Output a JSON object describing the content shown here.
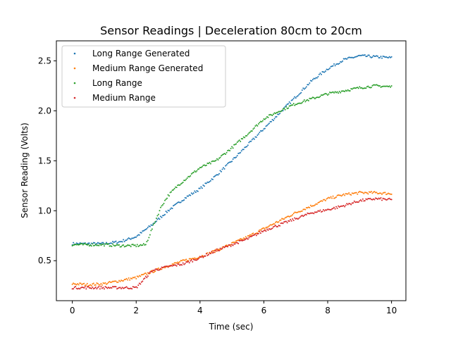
{
  "chart_data": {
    "type": "scatter",
    "title": "Sensor Readings | Deceleration 80cm to 20cm",
    "xlabel": "Time (sec)",
    "ylabel": "Sensor Reading (Volts)",
    "xlim": [
      -0.5,
      10.45
    ],
    "ylim": [
      0.1,
      2.7
    ],
    "xticks": [
      0,
      2,
      4,
      6,
      8,
      10
    ],
    "yticks": [
      0.5,
      1.0,
      1.5,
      2.0,
      2.5
    ],
    "xtick_labels": [
      "0",
      "2",
      "4",
      "6",
      "8",
      "10"
    ],
    "ytick_labels": [
      "0.5",
      "1.0",
      "1.5",
      "2.0",
      "2.5"
    ],
    "grid": false,
    "legend_position": "top-left",
    "series": [
      {
        "name": "Long Range Generated",
        "color": "#1f77b4",
        "x": [
          0,
          0.5,
          1,
          1.5,
          2,
          2.5,
          3,
          3.5,
          4,
          4.5,
          5,
          5.5,
          6,
          6.5,
          7,
          7.5,
          8,
          8.5,
          9,
          9.5,
          10
        ],
        "y": [
          0.67,
          0.67,
          0.67,
          0.69,
          0.74,
          0.86,
          1.0,
          1.12,
          1.22,
          1.35,
          1.5,
          1.66,
          1.82,
          1.98,
          2.14,
          2.3,
          2.42,
          2.51,
          2.55,
          2.54,
          2.53
        ]
      },
      {
        "name": "Medium Range Generated",
        "color": "#ff7f0e",
        "x": [
          0,
          0.5,
          1,
          1.5,
          2,
          2.5,
          3,
          3.5,
          4,
          4.5,
          5,
          5.5,
          6,
          6.5,
          7,
          7.5,
          8,
          8.5,
          9,
          9.5,
          10
        ],
        "y": [
          0.27,
          0.26,
          0.27,
          0.3,
          0.33,
          0.39,
          0.45,
          0.5,
          0.54,
          0.6,
          0.67,
          0.74,
          0.82,
          0.9,
          0.98,
          1.05,
          1.12,
          1.16,
          1.18,
          1.18,
          1.17
        ]
      },
      {
        "name": "Long Range",
        "color": "#2ca02c",
        "x": [
          0,
          0.5,
          1,
          1.5,
          2,
          2.3,
          2.6,
          2.8,
          3,
          3.3,
          3.6,
          4,
          4.5,
          5,
          5.5,
          6,
          6.5,
          7,
          7.5,
          8,
          8.5,
          9,
          9.5,
          10
        ],
        "y": [
          0.66,
          0.66,
          0.66,
          0.65,
          0.65,
          0.66,
          0.9,
          1.05,
          1.15,
          1.25,
          1.33,
          1.43,
          1.5,
          1.63,
          1.77,
          1.92,
          2.0,
          2.07,
          2.12,
          2.17,
          2.2,
          2.23,
          2.25,
          2.24
        ]
      },
      {
        "name": "Medium Range",
        "color": "#d62728",
        "x": [
          0,
          0.5,
          1,
          1.5,
          2,
          2.5,
          3,
          3.5,
          4,
          4.5,
          5,
          5.5,
          6,
          6.5,
          7,
          7.5,
          8,
          8.5,
          9,
          9.5,
          10
        ],
        "y": [
          0.23,
          0.23,
          0.23,
          0.23,
          0.23,
          0.4,
          0.44,
          0.47,
          0.53,
          0.6,
          0.66,
          0.72,
          0.8,
          0.86,
          0.92,
          0.98,
          1.01,
          1.05,
          1.1,
          1.12,
          1.11
        ]
      }
    ]
  }
}
